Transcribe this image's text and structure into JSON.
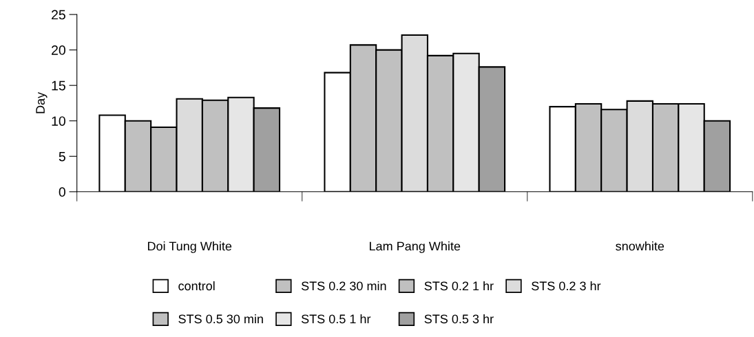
{
  "chart_data": {
    "type": "bar",
    "ylabel": "Day",
    "categories": [
      "Doi Tung White",
      "Lam Pang White",
      "snowhite"
    ],
    "series": [
      {
        "name": "control",
        "color": "#ffffff",
        "values": [
          10.8,
          16.8,
          12.0
        ]
      },
      {
        "name": "STS 0.2 30 min",
        "color": "#c0c0c0",
        "values": [
          10.0,
          20.7,
          12.4
        ]
      },
      {
        "name": "STS 0.2 1 hr",
        "color": "#c0c0c0",
        "values": [
          9.1,
          20.0,
          11.6
        ]
      },
      {
        "name": "STS 0.2 3 hr",
        "color": "#dcdcdc",
        "values": [
          13.1,
          22.1,
          12.8
        ]
      },
      {
        "name": "STS 0.5 30 min",
        "color": "#c0c0c0",
        "values": [
          12.9,
          19.2,
          12.4
        ]
      },
      {
        "name": "STS 0.5 1 hr",
        "color": "#e6e6e6",
        "values": [
          13.3,
          19.5,
          12.4
        ]
      },
      {
        "name": "STS 0.5 3 hr",
        "color": "#a0a0a0",
        "values": [
          11.8,
          17.6,
          10.0
        ]
      }
    ],
    "ylim": [
      0,
      25
    ],
    "yticks": [
      0,
      5,
      10,
      15,
      20,
      25
    ],
    "grid": false,
    "legend": "bottom"
  }
}
